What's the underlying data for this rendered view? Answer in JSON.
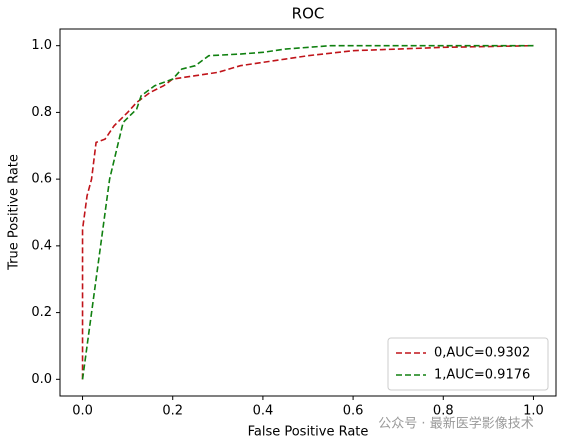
{
  "chart_data": {
    "type": "line",
    "title": "ROC",
    "x_label": "False Positive Rate",
    "y_label": "True Positive Rate",
    "xlim": [
      -0.05,
      1.05
    ],
    "ylim": [
      -0.05,
      1.05
    ],
    "xticks": [
      {
        "value": 0,
        "label": "0.0"
      },
      0.2,
      0.4,
      0.6,
      0.8,
      {
        "value": 1,
        "label": "1.0"
      }
    ],
    "yticks": [
      {
        "value": 0,
        "label": "0.0"
      },
      0.2,
      0.4,
      0.6,
      0.8,
      {
        "value": 1,
        "label": "1.0"
      }
    ],
    "grid": false,
    "legend": "lower right",
    "series": [
      {
        "name": "0,AUC=0.9302",
        "color": "#c0141a",
        "x": [
          0,
          0,
          0.01,
          0.02,
          0.03,
          0.05,
          0.07,
          0.1,
          0.12,
          0.15,
          0.18,
          0.2,
          0.25,
          0.3,
          0.35,
          0.4,
          0.45,
          0.5,
          0.6,
          0.7,
          0.8,
          1.0
        ],
        "values": [
          0,
          0.45,
          0.55,
          0.6,
          0.71,
          0.72,
          0.76,
          0.8,
          0.83,
          0.86,
          0.88,
          0.9,
          0.91,
          0.92,
          0.94,
          0.95,
          0.96,
          0.97,
          0.985,
          0.99,
          0.995,
          1.0
        ]
      },
      {
        "name": "1,AUC=0.9176",
        "color": "#108010",
        "x": [
          0,
          0.03,
          0.06,
          0.09,
          0.12,
          0.13,
          0.16,
          0.2,
          0.22,
          0.25,
          0.28,
          0.35,
          0.4,
          0.45,
          0.55,
          1.0
        ],
        "values": [
          0,
          0.3,
          0.6,
          0.77,
          0.81,
          0.85,
          0.88,
          0.9,
          0.93,
          0.94,
          0.97,
          0.975,
          0.98,
          0.99,
          1.0,
          1.0
        ]
      }
    ],
    "watermark": "公众号 · 最新医学影像技术"
  }
}
